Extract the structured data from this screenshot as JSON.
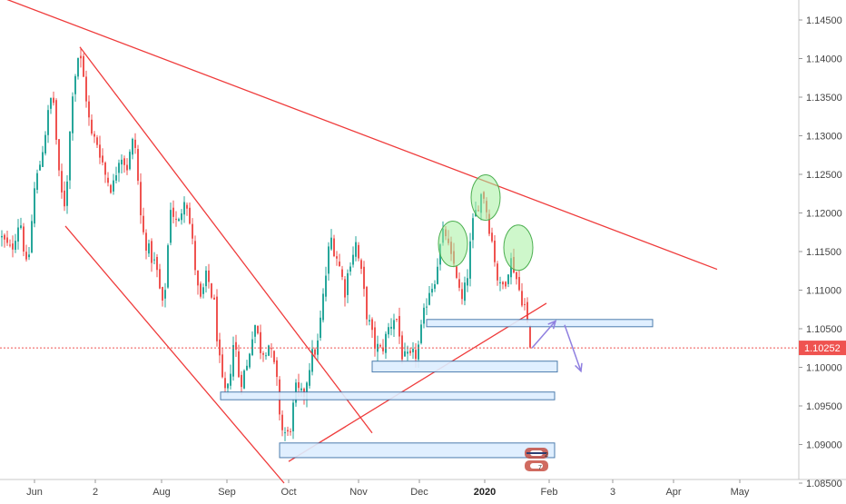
{
  "chart_data": {
    "type": "candlestick",
    "instrument_hint": "FX price chart",
    "y_axis": {
      "position": "right",
      "range": [
        1.082,
        1.149
      ],
      "tick_labels": [
        "1.14500",
        "1.14000",
        "1.13500",
        "1.13000",
        "1.12500",
        "1.12000",
        "1.11500",
        "1.11000",
        "1.10500",
        "1.10000",
        "1.09500",
        "1.09000",
        "1.08500"
      ]
    },
    "x_axis": {
      "tick_labels": [
        {
          "label": "Jun",
          "bold": false
        },
        {
          "label": "2",
          "bold": false
        },
        {
          "label": "Aug",
          "bold": false
        },
        {
          "label": "Sep",
          "bold": false
        },
        {
          "label": "Oct",
          "bold": false
        },
        {
          "label": "Nov",
          "bold": false
        },
        {
          "label": "Dec",
          "bold": false
        },
        {
          "label": "2020",
          "bold": true
        },
        {
          "label": "Feb",
          "bold": false
        },
        {
          "label": "3",
          "bold": false
        },
        {
          "label": "Apr",
          "bold": false
        },
        {
          "label": "May",
          "bold": false
        }
      ]
    },
    "last_price": {
      "value": 1.10252,
      "label": "1.10252",
      "color": "#ef5350"
    },
    "colors": {
      "up": "#26a69a",
      "down": "#ef5350",
      "trendline": "#ef3b3b",
      "zone_fill": "#ddeeff",
      "zone_stroke": "#3a6ea5",
      "ellipse_fill": "#a5f0a0",
      "ellipse_stroke": "#4caf50",
      "arrow": "#8f7fe0"
    },
    "price_path": [
      [
        0,
        1.117
      ],
      [
        12,
        1.115
      ],
      [
        22,
        1.1195
      ],
      [
        30,
        1.112
      ],
      [
        38,
        1.123
      ],
      [
        45,
        1.127
      ],
      [
        52,
        1.132
      ],
      [
        58,
        1.136
      ],
      [
        66,
        1.123
      ],
      [
        72,
        1.121
      ],
      [
        80,
        1.136
      ],
      [
        87,
        1.141
      ],
      [
        94,
        1.136
      ],
      [
        100,
        1.13
      ],
      [
        108,
        1.129
      ],
      [
        116,
        1.125
      ],
      [
        124,
        1.123
      ],
      [
        132,
        1.128
      ],
      [
        140,
        1.126
      ],
      [
        148,
        1.13
      ],
      [
        156,
        1.118
      ],
      [
        164,
        1.115
      ],
      [
        172,
        1.113
      ],
      [
        180,
        1.107
      ],
      [
        188,
        1.121
      ],
      [
        196,
        1.118
      ],
      [
        204,
        1.123
      ],
      [
        212,
        1.116
      ],
      [
        220,
        1.108
      ],
      [
        228,
        1.112
      ],
      [
        236,
        1.108
      ],
      [
        244,
        1.098
      ],
      [
        250,
        1.096
      ],
      [
        258,
        1.104
      ],
      [
        264,
        1.098
      ],
      [
        272,
        1.1
      ],
      [
        280,
        1.106
      ],
      [
        288,
        1.102
      ],
      [
        296,
        1.103
      ],
      [
        304,
        1.099
      ],
      [
        310,
        1.092
      ],
      [
        318,
        1.091
      ],
      [
        326,
        1.097
      ],
      [
        334,
        1.096
      ],
      [
        342,
        1.101
      ],
      [
        350,
        1.103
      ],
      [
        356,
        1.109
      ],
      [
        364,
        1.117
      ],
      [
        372,
        1.114
      ],
      [
        380,
        1.11
      ],
      [
        386,
        1.114
      ],
      [
        392,
        1.116
      ],
      [
        398,
        1.112
      ],
      [
        404,
        1.107
      ],
      [
        412,
        1.103
      ],
      [
        420,
        1.102
      ],
      [
        428,
        1.105
      ],
      [
        436,
        1.107
      ],
      [
        444,
        1.101
      ],
      [
        452,
        1.101
      ],
      [
        460,
        1.102
      ],
      [
        466,
        1.106
      ],
      [
        472,
        1.11
      ],
      [
        478,
        1.111
      ],
      [
        484,
        1.115
      ],
      [
        490,
        1.118
      ],
      [
        496,
        1.114
      ],
      [
        502,
        1.113
      ],
      [
        508,
        1.108
      ],
      [
        514,
        1.111
      ],
      [
        520,
        1.118
      ],
      [
        526,
        1.121
      ],
      [
        532,
        1.123
      ],
      [
        538,
        1.119
      ],
      [
        544,
        1.115
      ],
      [
        550,
        1.11
      ],
      [
        556,
        1.111
      ],
      [
        562,
        1.114
      ],
      [
        566,
        1.113
      ],
      [
        572,
        1.11
      ],
      [
        578,
        1.108
      ],
      [
        584,
        1.1025
      ]
    ],
    "annotations": {
      "trendlines": [
        {
          "from": [
            0,
            1.148
          ],
          "to": [
            790,
            1.1127
          ],
          "role": "long-term resistance"
        },
        {
          "from": [
            88,
            1.1415
          ],
          "to": [
            410,
            1.0915
          ],
          "role": "falling channel top"
        },
        {
          "from": [
            72,
            1.1183
          ],
          "to": [
            313,
            1.085
          ],
          "role": "falling channel bottom"
        },
        {
          "from": [
            318,
            1.0878
          ],
          "to": [
            602,
            1.1083
          ],
          "role": "rising support"
        }
      ],
      "zones": [
        {
          "x": [
            470,
            719
          ],
          "y": [
            1.1056,
            1.1062
          ]
        },
        {
          "x": [
            410,
            614
          ],
          "y": [
            1.0994,
            1.1008
          ]
        },
        {
          "x": [
            243,
            611
          ],
          "y": [
            1.0958,
            1.0968
          ]
        },
        {
          "x": [
            308,
            611
          ],
          "y": [
            1.0883,
            1.0902
          ]
        }
      ],
      "pattern_markers": [
        {
          "x": 499,
          "y": 1.116,
          "role": "left shoulder"
        },
        {
          "x": 535,
          "y": 1.122,
          "role": "head"
        },
        {
          "x": 571,
          "y": 1.1155,
          "role": "right shoulder"
        }
      ],
      "arrows": [
        {
          "from": [
            586,
            1.1025
          ],
          "to": [
            612,
            1.106
          ]
        },
        {
          "from": [
            622,
            1.1055
          ],
          "to": [
            640,
            1.0995
          ]
        }
      ]
    }
  }
}
